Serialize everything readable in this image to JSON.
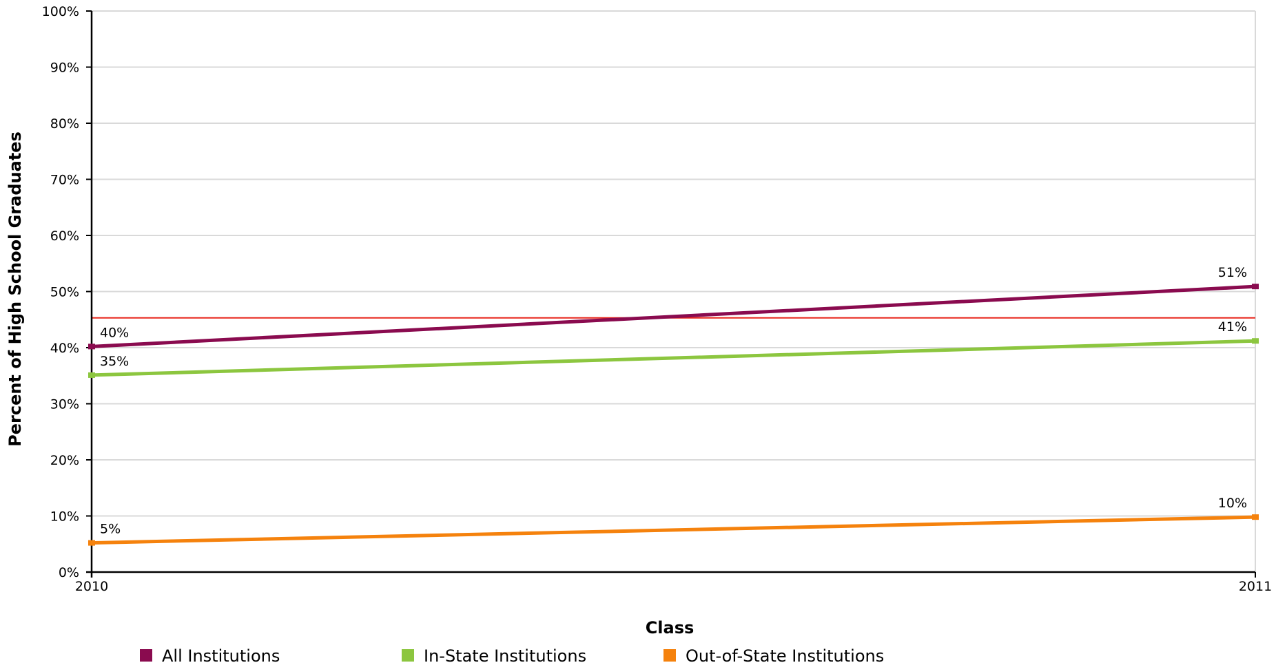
{
  "chart_data": {
    "type": "line",
    "x": [
      "2010",
      "2011"
    ],
    "xlabel": "Class",
    "ylabel": "Percent of High School Graduates",
    "ylim": [
      0,
      100
    ],
    "yticks": [
      "0%",
      "10%",
      "20%",
      "30%",
      "40%",
      "50%",
      "60%",
      "70%",
      "80%",
      "90%",
      "100%"
    ],
    "grid": true,
    "legend_position": "bottom",
    "reference_line": {
      "value": 45.3,
      "color": "#e8261c"
    },
    "series": [
      {
        "name": "All Institutions",
        "values": [
          40.2,
          50.9
        ],
        "labels": [
          "40%",
          "51%"
        ],
        "color": "#8a0b4f"
      },
      {
        "name": "In-State Institutions",
        "values": [
          35.1,
          41.2
        ],
        "labels": [
          "35%",
          "41%"
        ],
        "color": "#8cc63f"
      },
      {
        "name": "Out-of-State Institutions",
        "values": [
          5.2,
          9.8
        ],
        "labels": [
          "5%",
          "10%"
        ],
        "color": "#f5820d"
      }
    ]
  }
}
